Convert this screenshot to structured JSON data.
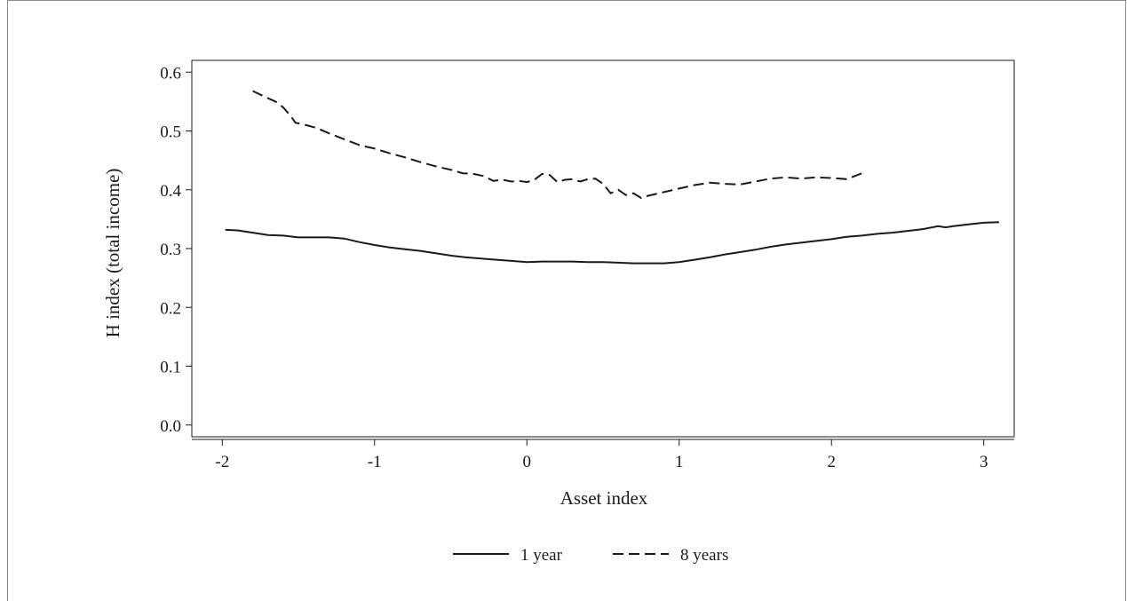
{
  "chart_data": {
    "type": "line",
    "title": "",
    "xlabel": "Asset index",
    "ylabel": "H index (total income)",
    "xlim": [
      -2.2,
      3.2
    ],
    "ylim": [
      -0.02,
      0.62
    ],
    "x_ticks": [
      "-2",
      "-1",
      "0",
      "1",
      "2",
      "3"
    ],
    "x_tick_values": [
      -2,
      -1,
      0,
      1,
      2,
      3
    ],
    "y_ticks": [
      "0.0",
      "0.1",
      "0.2",
      "0.3",
      "0.4",
      "0.5",
      "0.6"
    ],
    "y_tick_values": [
      0,
      0.1,
      0.2,
      0.3,
      0.4,
      0.5,
      0.6
    ],
    "grid": false,
    "legend_position": "bottom",
    "series": [
      {
        "name": "1 year",
        "style": "solid",
        "color": "#1a1a1a",
        "x": [
          -1.98,
          -1.9,
          -1.8,
          -1.7,
          -1.6,
          -1.5,
          -1.4,
          -1.3,
          -1.2,
          -1.1,
          -1.0,
          -0.9,
          -0.8,
          -0.7,
          -0.6,
          -0.5,
          -0.4,
          -0.3,
          -0.2,
          -0.1,
          0.0,
          0.1,
          0.2,
          0.3,
          0.4,
          0.5,
          0.6,
          0.7,
          0.8,
          0.9,
          1.0,
          1.1,
          1.2,
          1.3,
          1.4,
          1.5,
          1.6,
          1.7,
          1.8,
          1.9,
          2.0,
          2.1,
          2.2,
          2.3,
          2.4,
          2.5,
          2.6,
          2.7,
          2.75,
          2.8,
          2.9,
          3.0,
          3.1
        ],
        "y": [
          0.332,
          0.331,
          0.327,
          0.323,
          0.322,
          0.319,
          0.319,
          0.319,
          0.317,
          0.311,
          0.306,
          0.302,
          0.299,
          0.296,
          0.292,
          0.288,
          0.285,
          0.283,
          0.281,
          0.279,
          0.277,
          0.278,
          0.278,
          0.278,
          0.277,
          0.277,
          0.276,
          0.275,
          0.275,
          0.275,
          0.277,
          0.281,
          0.285,
          0.29,
          0.294,
          0.298,
          0.303,
          0.307,
          0.31,
          0.313,
          0.316,
          0.32,
          0.322,
          0.325,
          0.327,
          0.33,
          0.333,
          0.338,
          0.336,
          0.338,
          0.341,
          0.344,
          0.345
        ]
      },
      {
        "name": "8 years",
        "style": "dashed",
        "color": "#1a1a1a",
        "x": [
          -1.8,
          -1.72,
          -1.65,
          -1.6,
          -1.55,
          -1.52,
          -1.45,
          -1.38,
          -1.3,
          -1.2,
          -1.1,
          -1.0,
          -0.9,
          -0.8,
          -0.7,
          -0.6,
          -0.5,
          -0.42,
          -0.35,
          -0.28,
          -0.22,
          -0.16,
          -0.1,
          -0.05,
          0.0,
          0.05,
          0.1,
          0.15,
          0.2,
          0.25,
          0.3,
          0.35,
          0.4,
          0.45,
          0.5,
          0.55,
          0.6,
          0.65,
          0.7,
          0.75,
          0.8,
          0.9,
          1.0,
          1.1,
          1.2,
          1.3,
          1.4,
          1.5,
          1.6,
          1.7,
          1.8,
          1.9,
          2.0,
          2.1,
          2.22
        ],
        "y": [
          0.568,
          0.558,
          0.55,
          0.54,
          0.525,
          0.514,
          0.51,
          0.505,
          0.496,
          0.486,
          0.476,
          0.47,
          0.462,
          0.455,
          0.447,
          0.44,
          0.434,
          0.428,
          0.427,
          0.423,
          0.415,
          0.417,
          0.414,
          0.415,
          0.413,
          0.417,
          0.427,
          0.425,
          0.413,
          0.417,
          0.418,
          0.414,
          0.418,
          0.419,
          0.41,
          0.394,
          0.4,
          0.391,
          0.394,
          0.386,
          0.39,
          0.396,
          0.402,
          0.408,
          0.412,
          0.41,
          0.409,
          0.414,
          0.419,
          0.421,
          0.419,
          0.421,
          0.42,
          0.418,
          0.43
        ]
      }
    ]
  }
}
